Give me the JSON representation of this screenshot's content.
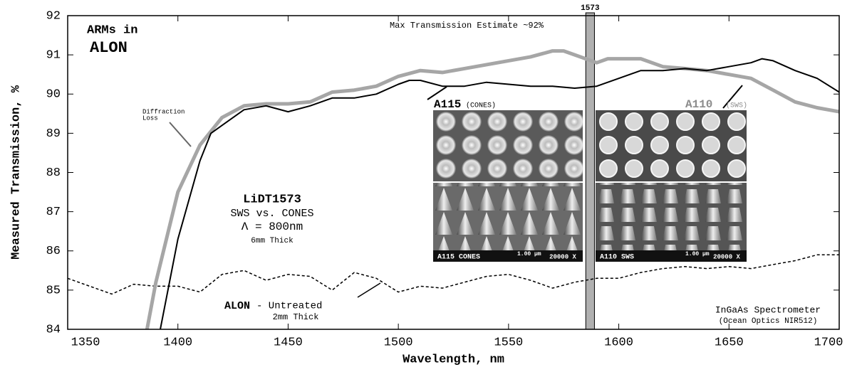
{
  "chart_data": {
    "type": "line",
    "xlabel": "Wavelength, nm",
    "ylabel": "Measured Transmission, %",
    "xlim": [
      1350,
      1700
    ],
    "xticks": [
      1350,
      1400,
      1450,
      1500,
      1550,
      1600,
      1650,
      1700
    ],
    "ylim": [
      84,
      92
    ],
    "yticks": [
      84,
      85,
      86,
      87,
      88,
      89,
      90,
      91,
      92
    ],
    "series": [
      {
        "name": "A115",
        "color": "#000000",
        "dash": false,
        "width": 2,
        "x": [
          1392,
          1400,
          1410,
          1415,
          1420,
          1430,
          1440,
          1450,
          1460,
          1470,
          1480,
          1490,
          1500,
          1505,
          1510,
          1520,
          1530,
          1540,
          1550,
          1560,
          1570,
          1580,
          1590,
          1600,
          1610,
          1620,
          1630,
          1640,
          1650,
          1660,
          1665,
          1670,
          1680,
          1690,
          1700
        ],
        "values": [
          84,
          86.3,
          88.3,
          89.0,
          89.2,
          89.6,
          89.7,
          89.55,
          89.7,
          89.9,
          89.9,
          90.0,
          90.25,
          90.35,
          90.35,
          90.2,
          90.2,
          90.3,
          90.25,
          90.2,
          90.2,
          90.15,
          90.2,
          90.4,
          90.6,
          90.6,
          90.65,
          90.6,
          90.7,
          90.8,
          90.9,
          90.85,
          90.6,
          90.4,
          90.05
        ]
      },
      {
        "name": "A110",
        "color": "#a6a6a6",
        "dash": false,
        "width": 5,
        "x": [
          1386,
          1390,
          1400,
          1410,
          1420,
          1430,
          1440,
          1450,
          1460,
          1470,
          1480,
          1490,
          1500,
          1510,
          1520,
          1530,
          1540,
          1550,
          1560,
          1570,
          1575,
          1580,
          1590,
          1595,
          1600,
          1610,
          1620,
          1630,
          1640,
          1650,
          1660,
          1670,
          1680,
          1690,
          1700
        ],
        "values": [
          84,
          85.2,
          87.5,
          88.7,
          89.4,
          89.7,
          89.75,
          89.75,
          89.8,
          90.05,
          90.1,
          90.2,
          90.45,
          90.6,
          90.55,
          90.65,
          90.75,
          90.85,
          90.95,
          91.1,
          91.1,
          91.0,
          90.8,
          90.9,
          90.9,
          90.9,
          90.7,
          90.65,
          90.6,
          90.5,
          90.4,
          90.1,
          89.8,
          89.65,
          89.55
        ]
      },
      {
        "name": "ALON",
        "color": "#000000",
        "dash": true,
        "width": 1.5,
        "x": [
          1350,
          1360,
          1370,
          1380,
          1390,
          1400,
          1410,
          1420,
          1430,
          1440,
          1450,
          1460,
          1470,
          1480,
          1490,
          1500,
          1510,
          1520,
          1530,
          1540,
          1550,
          1560,
          1570,
          1580,
          1590,
          1600,
          1610,
          1620,
          1630,
          1640,
          1650,
          1660,
          1670,
          1680,
          1690,
          1700
        ],
        "values": [
          85.3,
          85.1,
          84.9,
          85.15,
          85.1,
          85.1,
          84.95,
          85.4,
          85.5,
          85.25,
          85.4,
          85.35,
          85.0,
          85.45,
          85.3,
          84.95,
          85.1,
          85.05,
          85.2,
          85.35,
          85.4,
          85.25,
          85.05,
          85.2,
          85.3,
          85.3,
          85.45,
          85.55,
          85.6,
          85.55,
          85.6,
          85.55,
          85.65,
          85.75,
          85.9,
          85.9
        ]
      }
    ],
    "band": {
      "label": "1573",
      "x": [
        1586,
        1588
      ],
      "color": "#b0b0b0"
    },
    "annotations": [
      "ARMs in",
      "ALON",
      "Max Transmission Estimate ~92%",
      "Diffraction",
      "Loss",
      "LiDT1573",
      "SWS vs. CONES",
      "Λ = 800nm",
      "6mm Thick",
      "- Untreated",
      "2mm Thick",
      "InGaAs Spectrometer",
      "(Ocean Optics NIR512)",
      "(CONES)",
      "(SWS)"
    ],
    "images": [
      {
        "caption": "A115 CONES",
        "scale": "1.00 µm",
        "magnification": "20000 X"
      },
      {
        "caption": "A110 SWS",
        "scale": "1.00 µm",
        "magnification": "20000 X"
      }
    ]
  }
}
